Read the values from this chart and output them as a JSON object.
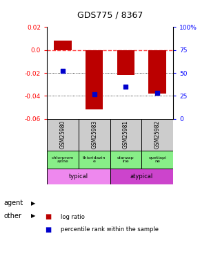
{
  "title": "GDS775 / 8367",
  "samples": [
    "GSM25980",
    "GSM25983",
    "GSM25981",
    "GSM25982"
  ],
  "log_ratios": [
    0.008,
    -0.052,
    -0.022,
    -0.038
  ],
  "percentile_ranks": [
    52,
    27,
    35,
    28
  ],
  "ylim_left": [
    -0.06,
    0.02
  ],
  "ylim_right": [
    0,
    100
  ],
  "yticks_left": [
    -0.06,
    -0.04,
    -0.02,
    0.0,
    0.02
  ],
  "yticks_right": [
    0,
    25,
    50,
    75,
    100
  ],
  "bar_color": "#bb0000",
  "dot_color": "#0000cc",
  "zero_line_color": "#ff4444",
  "grid_color": "#000000",
  "agent_labels": [
    "chlorprom\nazine",
    "thioridazin\ne",
    "olanzap\nine",
    "quetiapi\nne"
  ],
  "agent_bg": "#88ee88",
  "other_info": [
    [
      0,
      2,
      "#ee88ee",
      "typical"
    ],
    [
      2,
      4,
      "#cc44cc",
      "atypical"
    ]
  ],
  "legend_red": "log ratio",
  "legend_blue": "percentile rank within the sample",
  "background_color": "#ffffff",
  "gsm_bg": "#cccccc"
}
